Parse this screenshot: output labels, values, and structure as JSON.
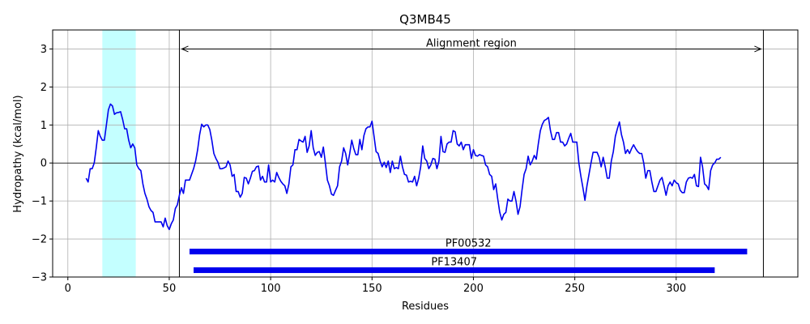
{
  "chart_data": {
    "type": "line",
    "title": "Q3MB45",
    "xlabel": "Residues",
    "ylabel": "Hydropathy (kcal/mol)",
    "xlim": [
      -7.5,
      360
    ],
    "ylim": [
      -3,
      3.5
    ],
    "xticks": [
      0,
      50,
      100,
      150,
      200,
      250,
      300
    ],
    "yticks": [
      -3,
      -2,
      -1,
      0,
      1,
      2,
      3
    ],
    "grid": true,
    "zero_line": 0,
    "highlight_region": {
      "x0": 17,
      "x1": 33.5,
      "color": "#c4ffff"
    },
    "alignment_region": {
      "label": "Alignment region",
      "x0": 55,
      "x1": 343,
      "y": 3
    },
    "domains": [
      {
        "name": "PF00532",
        "x0": 60,
        "x1": 335,
        "y": -2.33,
        "color": "#0000ee"
      },
      {
        "name": "PF13407",
        "x0": 62,
        "x1": 319,
        "y": -2.82,
        "color": "#0000ee"
      }
    ],
    "series": [
      {
        "color": "#0000ee",
        "points": [
          [
            9,
            -0.4
          ],
          [
            10,
            -0.5
          ],
          [
            11,
            -0.15
          ],
          [
            12,
            -0.15
          ],
          [
            13,
            0.0
          ],
          [
            14,
            0.4
          ],
          [
            15,
            0.85
          ],
          [
            16,
            0.7
          ],
          [
            17,
            0.6
          ],
          [
            18,
            0.6
          ],
          [
            19,
            1.0
          ],
          [
            20,
            1.4
          ],
          [
            21,
            1.55
          ],
          [
            22,
            1.5
          ],
          [
            23,
            1.28
          ],
          [
            24,
            1.32
          ],
          [
            25,
            1.33
          ],
          [
            26,
            1.35
          ],
          [
            27,
            1.15
          ],
          [
            28,
            0.9
          ],
          [
            29,
            0.9
          ],
          [
            30,
            0.6
          ],
          [
            31,
            0.4
          ],
          [
            32,
            0.5
          ],
          [
            33,
            0.4
          ],
          [
            34,
            -0.05
          ],
          [
            35,
            -0.15
          ],
          [
            36,
            -0.2
          ],
          [
            37,
            -0.55
          ],
          [
            38,
            -0.8
          ],
          [
            39,
            -0.95
          ],
          [
            40,
            -1.15
          ],
          [
            41,
            -1.25
          ],
          [
            42,
            -1.3
          ],
          [
            43,
            -1.55
          ],
          [
            44,
            -1.55
          ],
          [
            45,
            -1.55
          ],
          [
            46,
            -1.55
          ],
          [
            47,
            -1.68
          ],
          [
            48,
            -1.45
          ],
          [
            49,
            -1.65
          ],
          [
            50,
            -1.75
          ],
          [
            51,
            -1.6
          ],
          [
            52,
            -1.5
          ],
          [
            53,
            -1.2
          ],
          [
            54,
            -1.1
          ],
          [
            55,
            -0.85
          ],
          [
            56,
            -0.65
          ],
          [
            57,
            -0.8
          ],
          [
            58,
            -0.45
          ],
          [
            59,
            -0.45
          ],
          [
            60,
            -0.45
          ],
          [
            61,
            -0.3
          ],
          [
            62,
            -0.15
          ],
          [
            63,
            0.05
          ],
          [
            64,
            0.35
          ],
          [
            65,
            0.75
          ],
          [
            66,
            1.02
          ],
          [
            67,
            0.95
          ],
          [
            68,
            1.0
          ],
          [
            69,
            1.0
          ],
          [
            70,
            0.88
          ],
          [
            71,
            0.6
          ],
          [
            72,
            0.25
          ],
          [
            73,
            0.12
          ],
          [
            74,
            0.02
          ],
          [
            75,
            -0.15
          ],
          [
            76,
            -0.15
          ],
          [
            77,
            -0.13
          ],
          [
            78,
            -0.1
          ],
          [
            79,
            0.05
          ],
          [
            80,
            -0.05
          ],
          [
            81,
            -0.35
          ],
          [
            82,
            -0.3
          ],
          [
            83,
            -0.75
          ],
          [
            84,
            -0.75
          ],
          [
            85,
            -0.9
          ],
          [
            86,
            -0.8
          ],
          [
            87,
            -0.38
          ],
          [
            88,
            -0.4
          ],
          [
            89,
            -0.55
          ],
          [
            90,
            -0.4
          ],
          [
            91,
            -0.22
          ],
          [
            92,
            -0.2
          ],
          [
            93,
            -0.1
          ],
          [
            94,
            -0.08
          ],
          [
            95,
            -0.45
          ],
          [
            96,
            -0.35
          ],
          [
            97,
            -0.5
          ],
          [
            98,
            -0.5
          ],
          [
            99,
            -0.05
          ],
          [
            100,
            -0.5
          ],
          [
            101,
            -0.45
          ],
          [
            102,
            -0.5
          ],
          [
            103,
            -0.25
          ],
          [
            104,
            -0.38
          ],
          [
            105,
            -0.48
          ],
          [
            106,
            -0.55
          ],
          [
            107,
            -0.6
          ],
          [
            108,
            -0.8
          ],
          [
            109,
            -0.55
          ],
          [
            110,
            -0.1
          ],
          [
            111,
            -0.05
          ],
          [
            112,
            0.35
          ],
          [
            113,
            0.35
          ],
          [
            114,
            0.62
          ],
          [
            115,
            0.58
          ],
          [
            116,
            0.55
          ],
          [
            117,
            0.7
          ],
          [
            118,
            0.28
          ],
          [
            119,
            0.45
          ],
          [
            120,
            0.85
          ],
          [
            121,
            0.4
          ],
          [
            122,
            0.2
          ],
          [
            123,
            0.28
          ],
          [
            124,
            0.3
          ],
          [
            125,
            0.15
          ],
          [
            126,
            0.42
          ],
          [
            127,
            0.0
          ],
          [
            128,
            -0.45
          ],
          [
            129,
            -0.6
          ],
          [
            130,
            -0.82
          ],
          [
            131,
            -0.85
          ],
          [
            132,
            -0.72
          ],
          [
            133,
            -0.6
          ],
          [
            134,
            -0.1
          ],
          [
            135,
            0.05
          ],
          [
            136,
            0.4
          ],
          [
            137,
            0.25
          ],
          [
            138,
            -0.05
          ],
          [
            139,
            0.25
          ],
          [
            140,
            0.6
          ],
          [
            141,
            0.38
          ],
          [
            142,
            0.22
          ],
          [
            143,
            0.22
          ],
          [
            144,
            0.62
          ],
          [
            145,
            0.35
          ],
          [
            146,
            0.72
          ],
          [
            147,
            0.9
          ],
          [
            148,
            0.95
          ],
          [
            149,
            0.95
          ],
          [
            150,
            1.1
          ],
          [
            151,
            0.7
          ],
          [
            152,
            0.3
          ],
          [
            153,
            0.25
          ],
          [
            154,
            0.05
          ],
          [
            155,
            -0.1
          ],
          [
            156,
            0.02
          ],
          [
            157,
            -0.12
          ],
          [
            158,
            0.05
          ],
          [
            159,
            -0.25
          ],
          [
            160,
            0.05
          ],
          [
            161,
            -0.15
          ],
          [
            162,
            -0.12
          ],
          [
            163,
            -0.15
          ],
          [
            164,
            0.18
          ],
          [
            165,
            -0.1
          ],
          [
            166,
            -0.3
          ],
          [
            167,
            -0.32
          ],
          [
            168,
            -0.5
          ],
          [
            169,
            -0.48
          ],
          [
            170,
            -0.5
          ],
          [
            171,
            -0.35
          ],
          [
            172,
            -0.6
          ],
          [
            173,
            -0.4
          ],
          [
            174,
            -0.1
          ],
          [
            175,
            0.45
          ],
          [
            176,
            0.12
          ],
          [
            177,
            0.05
          ],
          [
            178,
            -0.15
          ],
          [
            179,
            -0.05
          ],
          [
            180,
            0.12
          ],
          [
            181,
            0.1
          ],
          [
            182,
            -0.15
          ],
          [
            183,
            0.05
          ],
          [
            184,
            0.7
          ],
          [
            185,
            0.3
          ],
          [
            186,
            0.28
          ],
          [
            187,
            0.5
          ],
          [
            188,
            0.55
          ],
          [
            189,
            0.55
          ],
          [
            190,
            0.85
          ],
          [
            191,
            0.82
          ],
          [
            192,
            0.5
          ],
          [
            193,
            0.45
          ],
          [
            194,
            0.55
          ],
          [
            195,
            0.35
          ],
          [
            196,
            0.48
          ],
          [
            197,
            0.48
          ],
          [
            198,
            0.48
          ],
          [
            199,
            0.12
          ],
          [
            200,
            0.35
          ],
          [
            201,
            0.2
          ],
          [
            202,
            0.18
          ],
          [
            203,
            0.22
          ],
          [
            204,
            0.2
          ],
          [
            205,
            0.18
          ],
          [
            206,
            -0.05
          ],
          [
            207,
            -0.1
          ],
          [
            208,
            -0.3
          ],
          [
            209,
            -0.35
          ],
          [
            210,
            -0.7
          ],
          [
            211,
            -0.55
          ],
          [
            212,
            -0.95
          ],
          [
            213,
            -1.3
          ],
          [
            214,
            -1.5
          ],
          [
            215,
            -1.35
          ],
          [
            216,
            -1.3
          ],
          [
            217,
            -0.95
          ],
          [
            218,
            -1.0
          ],
          [
            219,
            -1.0
          ],
          [
            220,
            -0.75
          ],
          [
            221,
            -1.0
          ],
          [
            222,
            -1.35
          ],
          [
            223,
            -1.15
          ],
          [
            224,
            -0.7
          ],
          [
            225,
            -0.3
          ],
          [
            226,
            -0.15
          ],
          [
            227,
            0.18
          ],
          [
            228,
            -0.05
          ],
          [
            229,
            0.05
          ],
          [
            230,
            0.2
          ],
          [
            231,
            0.1
          ],
          [
            232,
            0.5
          ],
          [
            233,
            0.85
          ],
          [
            234,
            1.02
          ],
          [
            235,
            1.12
          ],
          [
            236,
            1.15
          ],
          [
            237,
            1.2
          ],
          [
            238,
            0.85
          ],
          [
            239,
            0.62
          ],
          [
            240,
            0.62
          ],
          [
            241,
            0.8
          ],
          [
            242,
            0.8
          ],
          [
            243,
            0.55
          ],
          [
            244,
            0.55
          ],
          [
            245,
            0.45
          ],
          [
            246,
            0.5
          ],
          [
            247,
            0.65
          ],
          [
            248,
            0.78
          ],
          [
            249,
            0.55
          ],
          [
            250,
            0.55
          ],
          [
            251,
            0.55
          ],
          [
            252,
            0.0
          ],
          [
            253,
            -0.35
          ],
          [
            254,
            -0.65
          ],
          [
            255,
            -0.98
          ],
          [
            256,
            -0.6
          ],
          [
            257,
            -0.3
          ],
          [
            258,
            0.0
          ],
          [
            259,
            0.28
          ],
          [
            260,
            0.28
          ],
          [
            261,
            0.28
          ],
          [
            262,
            0.15
          ],
          [
            263,
            -0.1
          ],
          [
            264,
            0.15
          ],
          [
            265,
            -0.1
          ],
          [
            266,
            -0.4
          ],
          [
            267,
            -0.4
          ],
          [
            268,
            0.05
          ],
          [
            269,
            0.3
          ],
          [
            270,
            0.7
          ],
          [
            271,
            0.9
          ],
          [
            272,
            1.08
          ],
          [
            273,
            0.75
          ],
          [
            274,
            0.55
          ],
          [
            275,
            0.25
          ],
          [
            276,
            0.35
          ],
          [
            277,
            0.25
          ],
          [
            278,
            0.38
          ],
          [
            279,
            0.48
          ],
          [
            280,
            0.38
          ],
          [
            281,
            0.3
          ],
          [
            282,
            0.25
          ],
          [
            283,
            0.25
          ],
          [
            284,
            0.0
          ],
          [
            285,
            -0.4
          ],
          [
            286,
            -0.2
          ],
          [
            287,
            -0.2
          ],
          [
            288,
            -0.5
          ],
          [
            289,
            -0.75
          ],
          [
            290,
            -0.75
          ],
          [
            291,
            -0.6
          ],
          [
            292,
            -0.45
          ],
          [
            293,
            -0.38
          ],
          [
            294,
            -0.6
          ],
          [
            295,
            -0.85
          ],
          [
            296,
            -0.6
          ],
          [
            297,
            -0.5
          ],
          [
            298,
            -0.6
          ],
          [
            299,
            -0.45
          ],
          [
            300,
            -0.52
          ],
          [
            301,
            -0.55
          ],
          [
            302,
            -0.72
          ],
          [
            303,
            -0.78
          ],
          [
            304,
            -0.78
          ],
          [
            305,
            -0.5
          ],
          [
            306,
            -0.4
          ],
          [
            307,
            -0.38
          ],
          [
            308,
            -0.4
          ],
          [
            309,
            -0.3
          ],
          [
            310,
            -0.6
          ],
          [
            311,
            -0.62
          ],
          [
            312,
            0.15
          ],
          [
            313,
            -0.1
          ],
          [
            314,
            -0.55
          ],
          [
            315,
            -0.6
          ],
          [
            316,
            -0.7
          ],
          [
            317,
            -0.2
          ],
          [
            318,
            -0.05
          ],
          [
            319,
            0.0
          ],
          [
            320,
            0.1
          ],
          [
            321,
            0.1
          ],
          [
            322,
            0.15
          ]
        ]
      }
    ]
  }
}
